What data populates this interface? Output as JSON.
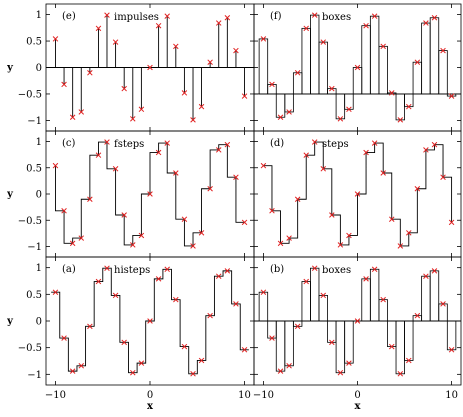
{
  "chart_data": {
    "type": "line",
    "colors": {
      "line": "#000000",
      "points": "#e02020"
    },
    "points": {
      "x": [
        -10,
        -9.09,
        -8.18,
        -7.27,
        -6.36,
        -5.45,
        -4.55,
        -3.64,
        -2.73,
        -1.82,
        -0.91,
        0,
        0.91,
        1.82,
        2.73,
        3.64,
        4.55,
        5.45,
        6.36,
        7.27,
        8.18,
        9.09,
        10
      ],
      "y": [
        0.54,
        -0.32,
        -0.94,
        -0.84,
        -0.1,
        0.74,
        0.99,
        0.48,
        -0.4,
        -0.97,
        -0.79,
        0.0,
        0.79,
        0.97,
        0.4,
        -0.48,
        -0.99,
        -0.74,
        0.1,
        0.84,
        0.94,
        0.32,
        -0.54
      ]
    },
    "xaxis": {
      "label": "x",
      "range": [
        -11,
        11
      ],
      "ticks": [
        -10,
        0,
        10
      ]
    },
    "panels": [
      {
        "id": "e",
        "tag": "(e)",
        "series_label": "impulses",
        "style": "impulses",
        "ylabel": "y",
        "ylim": [
          -1.2,
          1.2
        ],
        "yticks": [
          1,
          0.5,
          0,
          -0.5,
          -1
        ],
        "ytick_labels": [
          "1",
          "0.5",
          "0",
          "−0.5",
          "−1"
        ],
        "baseline": 0
      },
      {
        "id": "f",
        "tag": "(f)",
        "series_label": "boxes",
        "style": "boxes",
        "ylabel": "",
        "ylim": [
          -1.2,
          1.2
        ],
        "yticks": [],
        "ytick_labels": [],
        "baseline": -0.5
      },
      {
        "id": "c",
        "tag": "(c)",
        "series_label": "fsteps",
        "style": "fsteps",
        "ylabel": "y",
        "ylim": [
          -1.2,
          1.2
        ],
        "yticks": [
          1,
          0.5,
          0,
          -0.5,
          -1
        ],
        "ytick_labels": [
          "1",
          "0.5",
          "0",
          "−0.5",
          "−1"
        ]
      },
      {
        "id": "d",
        "tag": "(d)",
        "series_label": "steps",
        "style": "steps",
        "ylabel": "",
        "ylim": [
          -1.2,
          1.2
        ],
        "yticks": [],
        "ytick_labels": []
      },
      {
        "id": "a",
        "tag": "(a)",
        "series_label": "histeps",
        "style": "histeps",
        "ylabel": "y",
        "ylim": [
          -1.2,
          1.2
        ],
        "yticks": [
          1,
          0.5,
          0,
          -0.5,
          -1
        ],
        "ytick_labels": [
          "1",
          "0.5",
          "0",
          "−0.5",
          "−1"
        ]
      },
      {
        "id": "b",
        "tag": "(b)",
        "series_label": "boxes",
        "style": "boxes",
        "ylabel": "",
        "ylim": [
          -1.2,
          1.2
        ],
        "yticks": [],
        "ytick_labels": [],
        "baseline": 0
      }
    ],
    "xtick_labels": {
      "-10": "−10",
      "0": "0",
      "10": "10"
    },
    "xlabel": "x",
    "grid": false,
    "legend": "none"
  }
}
